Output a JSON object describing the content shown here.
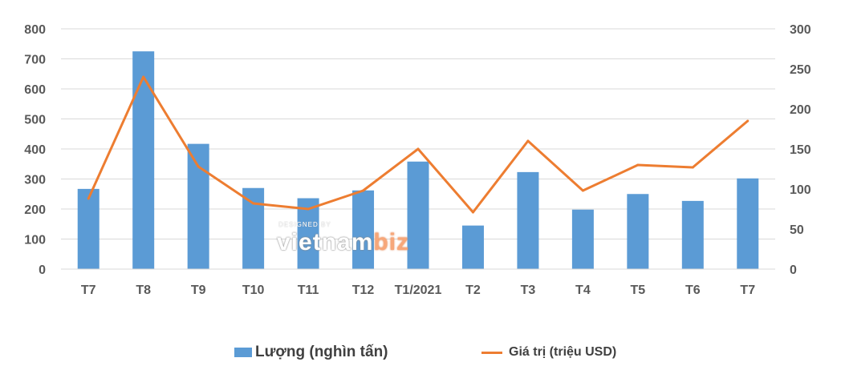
{
  "chart_data": {
    "type": "bar",
    "categories": [
      "T7",
      "T8",
      "T9",
      "T10",
      "T11",
      "T12",
      "T1/2021",
      "T2",
      "T3",
      "T4",
      "T5",
      "T6",
      "T7"
    ],
    "series": [
      {
        "name": "Lượng (nghìn tấn)",
        "type": "bar",
        "axis": "left",
        "values": [
          267,
          725,
          417,
          270,
          236,
          262,
          358,
          145,
          323,
          198,
          250,
          227,
          302
        ]
      },
      {
        "name": "Giá trị (triệu USD)",
        "type": "line",
        "axis": "right",
        "values": [
          88,
          240,
          128,
          82,
          75,
          98,
          150,
          71,
          160,
          98,
          130,
          127,
          185
        ]
      }
    ],
    "ylim": [
      0,
      800
    ],
    "y2lim": [
      0,
      300
    ],
    "yticks": [
      "0",
      "100",
      "200",
      "300",
      "400",
      "500",
      "600",
      "700",
      "800"
    ],
    "y2ticks": [
      "0",
      "50",
      "100",
      "150",
      "200",
      "250",
      "300"
    ],
    "grid": true,
    "legend_position": "bottom",
    "colors": {
      "bar": "#5b9bd5",
      "line": "#ed7d31",
      "grid": "#d9d9d9",
      "text": "#595959"
    }
  },
  "watermark": {
    "top": "DESIGNED BY",
    "main": "vietnam",
    "accent": "biz"
  }
}
